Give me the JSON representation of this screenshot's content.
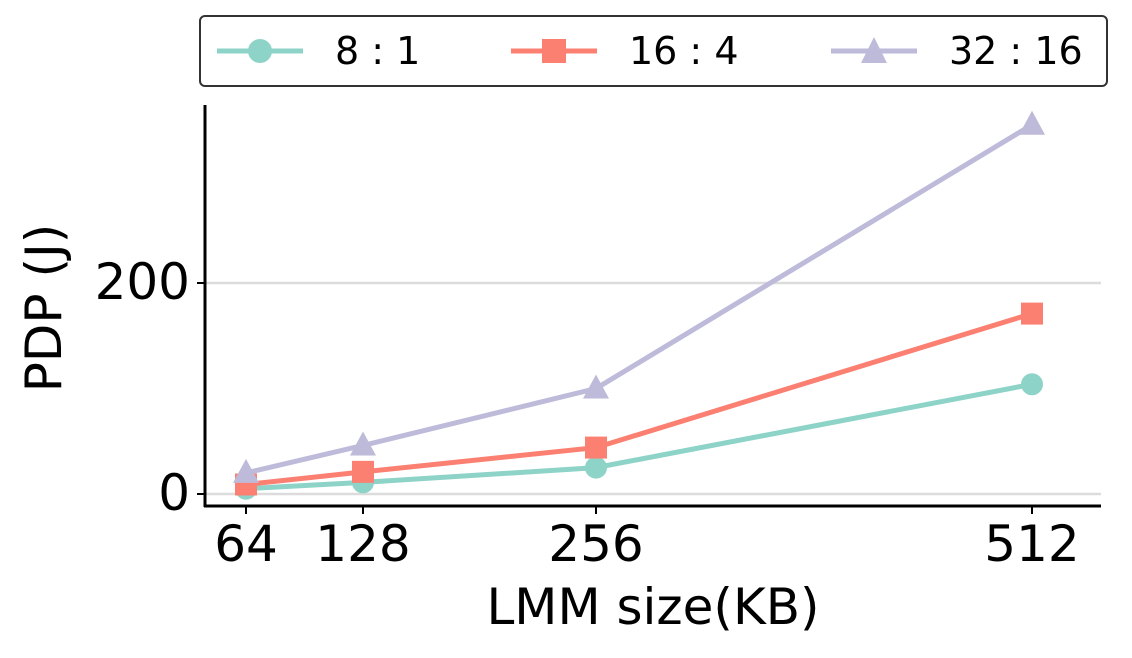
{
  "chart_data": {
    "type": "line",
    "title": "",
    "xlabel": "LMM size(KB)",
    "ylabel": "PDP (J)",
    "categories": [
      "64",
      "128",
      "256",
      "512"
    ],
    "x": [
      64,
      128,
      256,
      512
    ],
    "series": [
      {
        "name": "8 : 1",
        "marker": "circle",
        "color": "#8dd3c7",
        "values": [
          5,
          11,
          25,
          104
        ]
      },
      {
        "name": "16 : 4",
        "marker": "square",
        "color": "#fb8072",
        "values": [
          9,
          21,
          44,
          171
        ]
      },
      {
        "name": "32 : 16",
        "marker": "triangle",
        "color": "#bebada",
        "values": [
          20,
          46,
          100,
          350
        ]
      }
    ],
    "yticks": [
      0,
      200
    ],
    "ylim": [
      -12,
      370
    ],
    "grid": "horizontal",
    "legend_position": "top, outside, horizontal"
  },
  "legend": {
    "items": [
      "8 : 1",
      "16 : 4",
      "32 : 16"
    ]
  },
  "axes": {
    "xlabel": "LMM size(KB)",
    "ylabel": "PDP (J)",
    "xticks": [
      "64",
      "128",
      "256",
      "512"
    ],
    "yticks": [
      "0",
      "200"
    ]
  }
}
